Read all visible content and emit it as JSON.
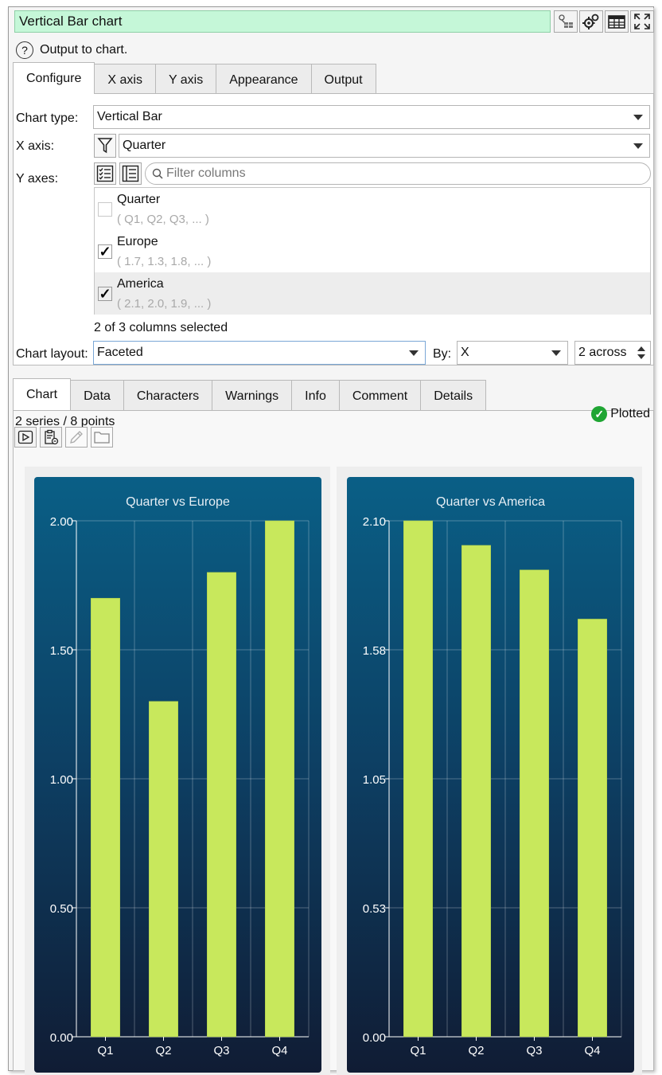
{
  "title": "Vertical Bar chart",
  "toolbar_icons": [
    "hierarchy-icon",
    "gears-icon",
    "table-icon",
    "expand-icon"
  ],
  "help_text": "Output to chart.",
  "config_tabs": [
    "Configure",
    "X axis",
    "Y axis",
    "Appearance",
    "Output"
  ],
  "config_active_tab": "Configure",
  "chart_type": {
    "label": "Chart type:",
    "value": "Vertical Bar"
  },
  "x_axis": {
    "label": "X axis:",
    "value": "Quarter"
  },
  "y_axes": {
    "label": "Y axes:",
    "filter_placeholder": "Filter columns",
    "columns": [
      {
        "name": "Quarter",
        "sample": "( Q1, Q2, Q3, ... )",
        "checked": false
      },
      {
        "name": "Europe",
        "sample": "( 1.7, 1.3, 1.8, ... )",
        "checked": true
      },
      {
        "name": "America",
        "sample": "( 2.1, 2.0, 1.9, ... )",
        "checked": true
      }
    ],
    "selected_summary": "2 of 3 columns selected"
  },
  "chart_layout": {
    "label": "Chart layout:",
    "value": "Faceted",
    "by_label": "By:",
    "by_value": "X",
    "across_value": "2 across"
  },
  "output_tabs": [
    "Chart",
    "Data",
    "Characters",
    "Warnings",
    "Info",
    "Comment",
    "Details"
  ],
  "output_active_tab": "Chart",
  "series_summary": "2 series / 8 points",
  "status": "Plotted",
  "output_tool_icons": [
    "play-icon",
    "clipboard-icon",
    "pencil-icon",
    "folder-icon"
  ],
  "colors": {
    "bar": "#c8e85c",
    "title_bg": "#c5f7d8",
    "ok": "#1fa533"
  },
  "chart_data": [
    {
      "type": "bar",
      "title": "Quarter vs Europe",
      "categories": [
        "Q1",
        "Q2",
        "Q3",
        "Q4"
      ],
      "values": [
        1.7,
        1.3,
        1.8,
        2.0
      ],
      "ylim": [
        0,
        2.0
      ],
      "yticks": [
        "0.00",
        "0.50",
        "1.00",
        "1.50",
        "2.00"
      ],
      "grid": true
    },
    {
      "type": "bar",
      "title": "Quarter vs America",
      "categories": [
        "Q1",
        "Q2",
        "Q3",
        "Q4"
      ],
      "values": [
        2.1,
        2.0,
        1.9,
        1.7
      ],
      "ylim": [
        0,
        2.1
      ],
      "yticks": [
        "0.00",
        "0.53",
        "1.05",
        "1.58",
        "2.10"
      ],
      "grid": true
    }
  ]
}
